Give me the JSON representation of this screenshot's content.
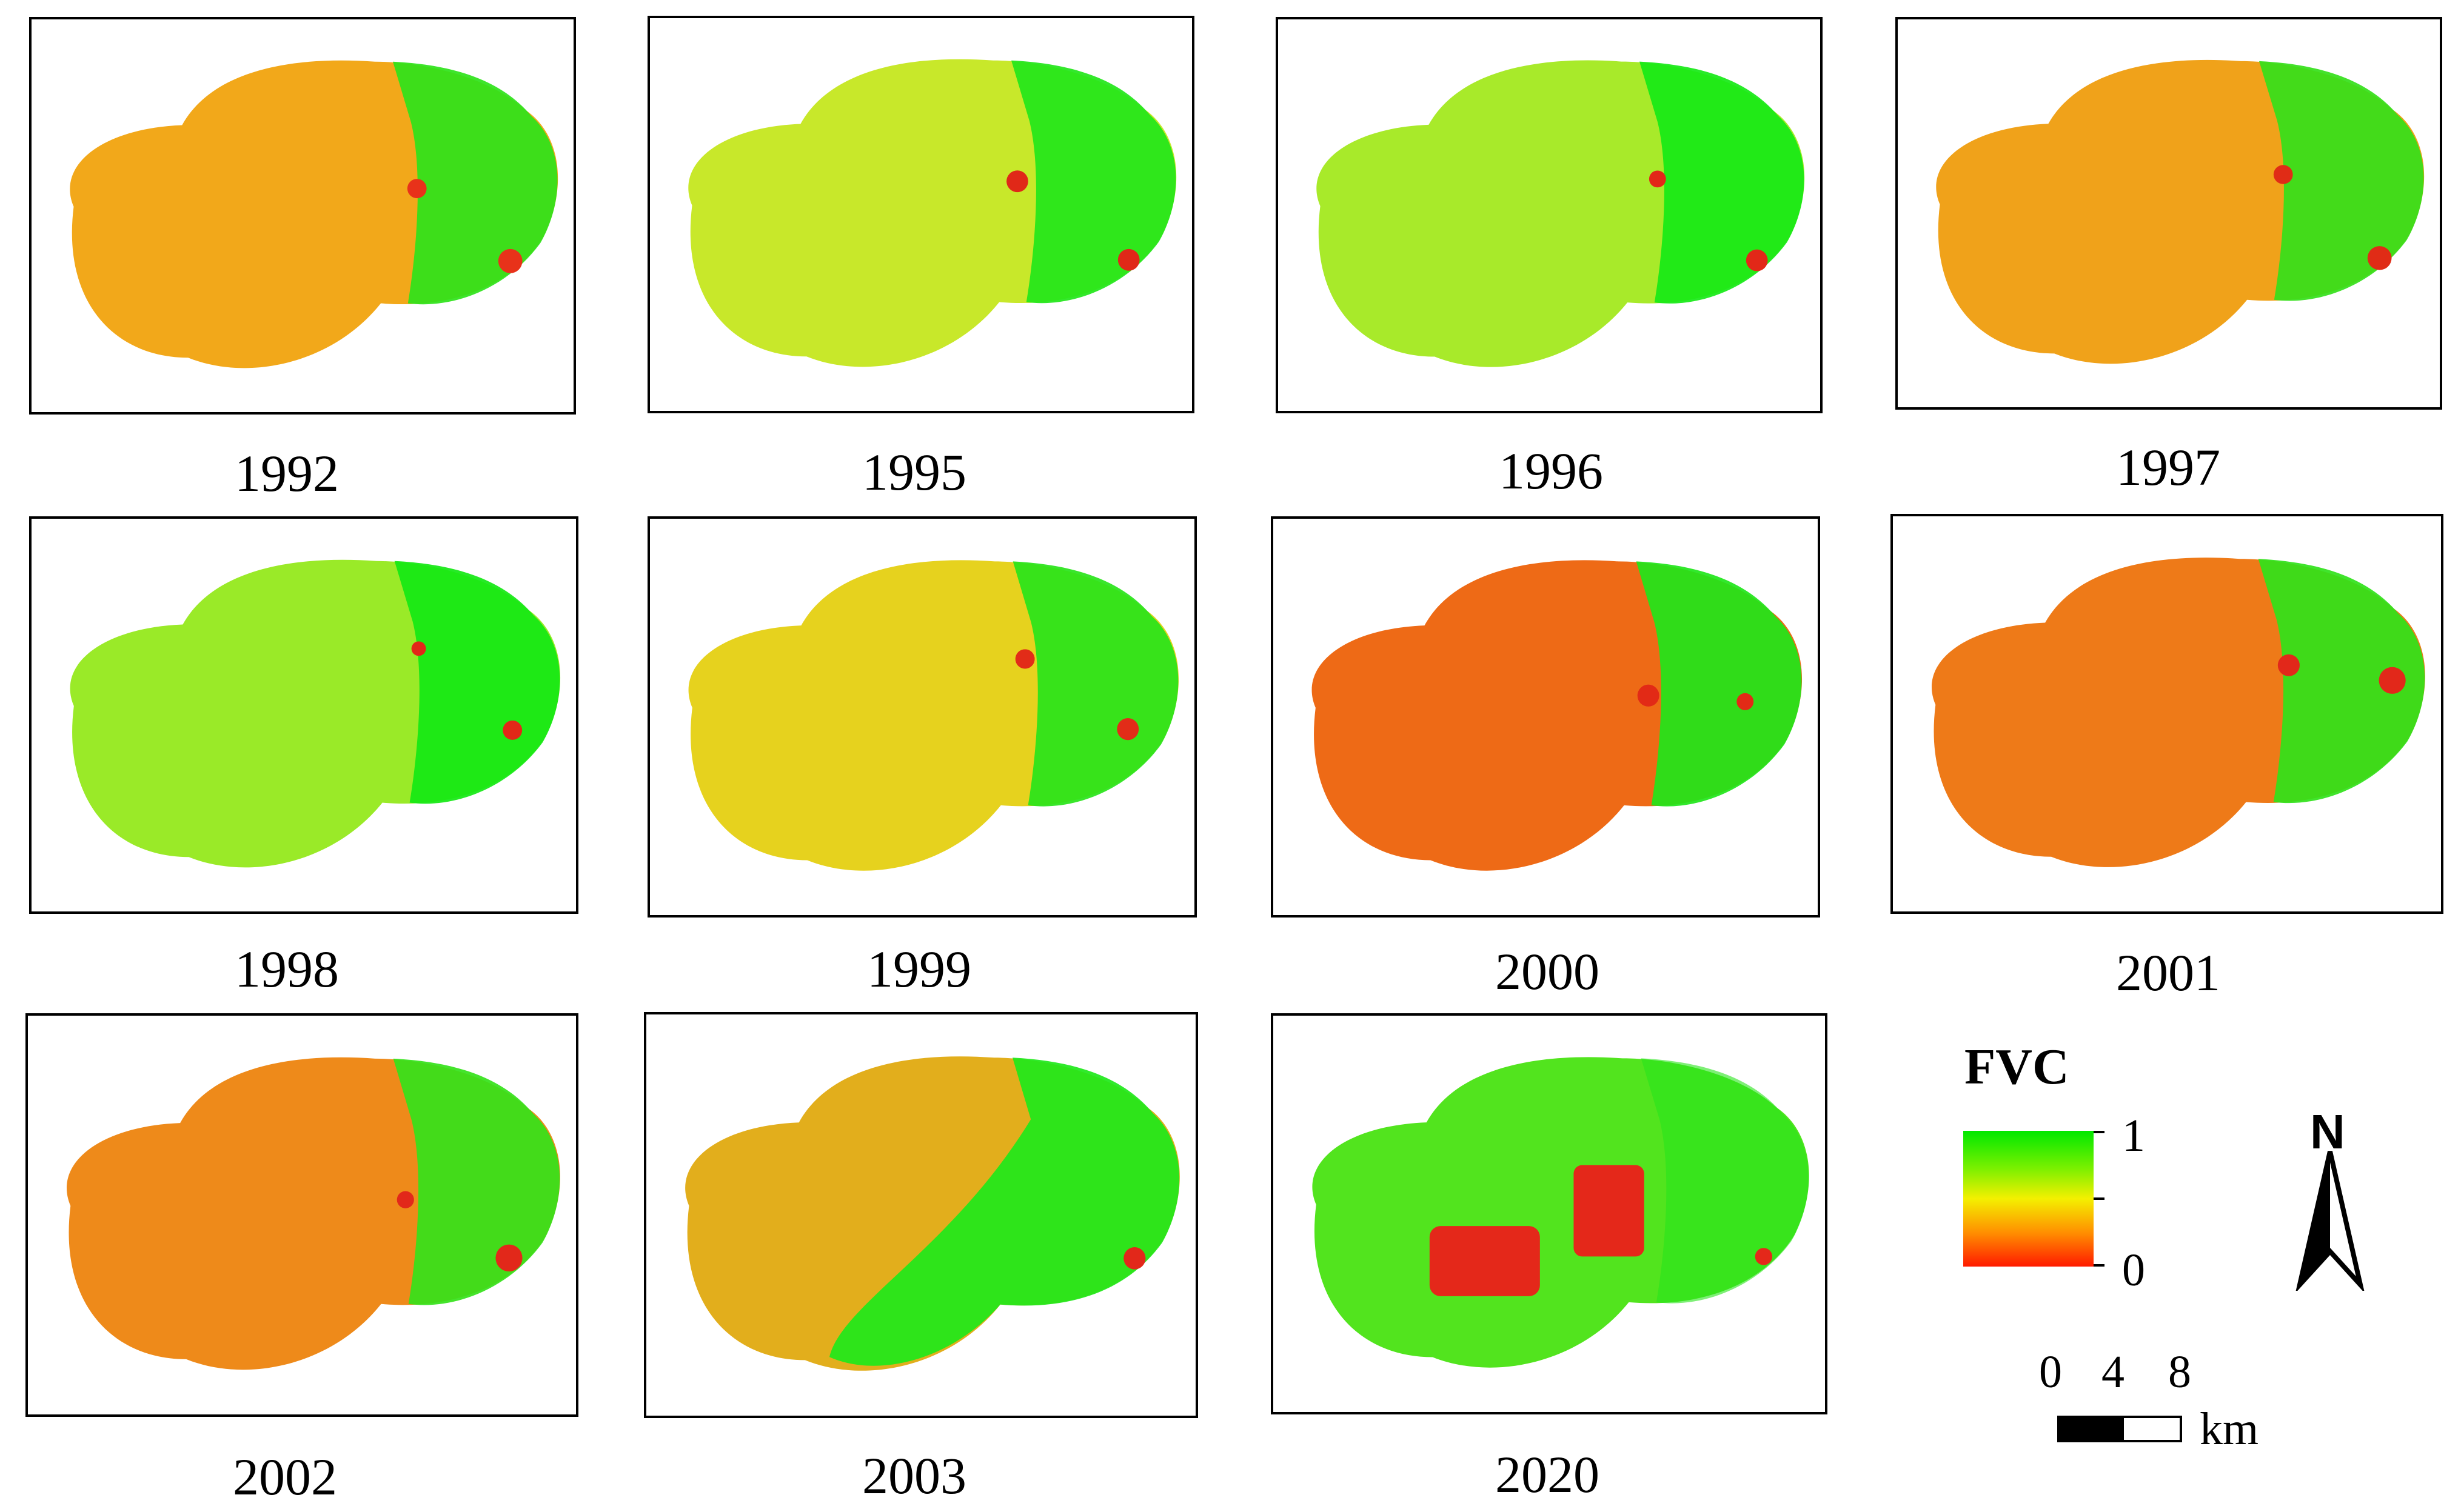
{
  "panels": [
    {
      "year": "1992",
      "tone": "#f2a81a",
      "east": "#2ee31a",
      "hot": "#e8321a"
    },
    {
      "year": "1995",
      "tone": "#c8e82a",
      "east": "#22e61a",
      "hot": "#e02818"
    },
    {
      "year": "1996",
      "tone": "#a8ea2a",
      "east": "#16e916",
      "hot": "#e22818"
    },
    {
      "year": "1997",
      "tone": "#f0a21a",
      "east": "#34e01a",
      "hot": "#e02c16"
    },
    {
      "year": "1998",
      "tone": "#9aea28",
      "east": "#14e814",
      "hot": "#e22818"
    },
    {
      "year": "1999",
      "tone": "#e6d21e",
      "east": "#28e41a",
      "hot": "#e22c18"
    },
    {
      "year": "2000",
      "tone": "#ee6a16",
      "east": "#20e61a",
      "hot": "#e22a16"
    },
    {
      "year": "2001",
      "tone": "#ee7a18",
      "east": "#30e21a",
      "hot": "#e2281a"
    },
    {
      "year": "2002",
      "tone": "#ee8a1a",
      "east": "#34e21a",
      "hot": "#e2281a"
    },
    {
      "year": "2003",
      "tone": "#e2ae1c",
      "east": "#1ee81a",
      "hot": "#e2281a"
    },
    {
      "year": "2020",
      "tone": "#52e41e",
      "east": "#28e41a",
      "hot": "#e4281a"
    }
  ],
  "legend": {
    "title": "FVC",
    "max_label": "1",
    "min_label": "0",
    "colors": {
      "high": "#00e800",
      "mid": "#f4f000",
      "low": "#ff1a00"
    }
  },
  "scale_bar": {
    "ticks": [
      "0",
      "4",
      "8"
    ],
    "unit": "km"
  },
  "north_arrow": {
    "label": "N",
    "icon": "north-arrow-icon"
  }
}
